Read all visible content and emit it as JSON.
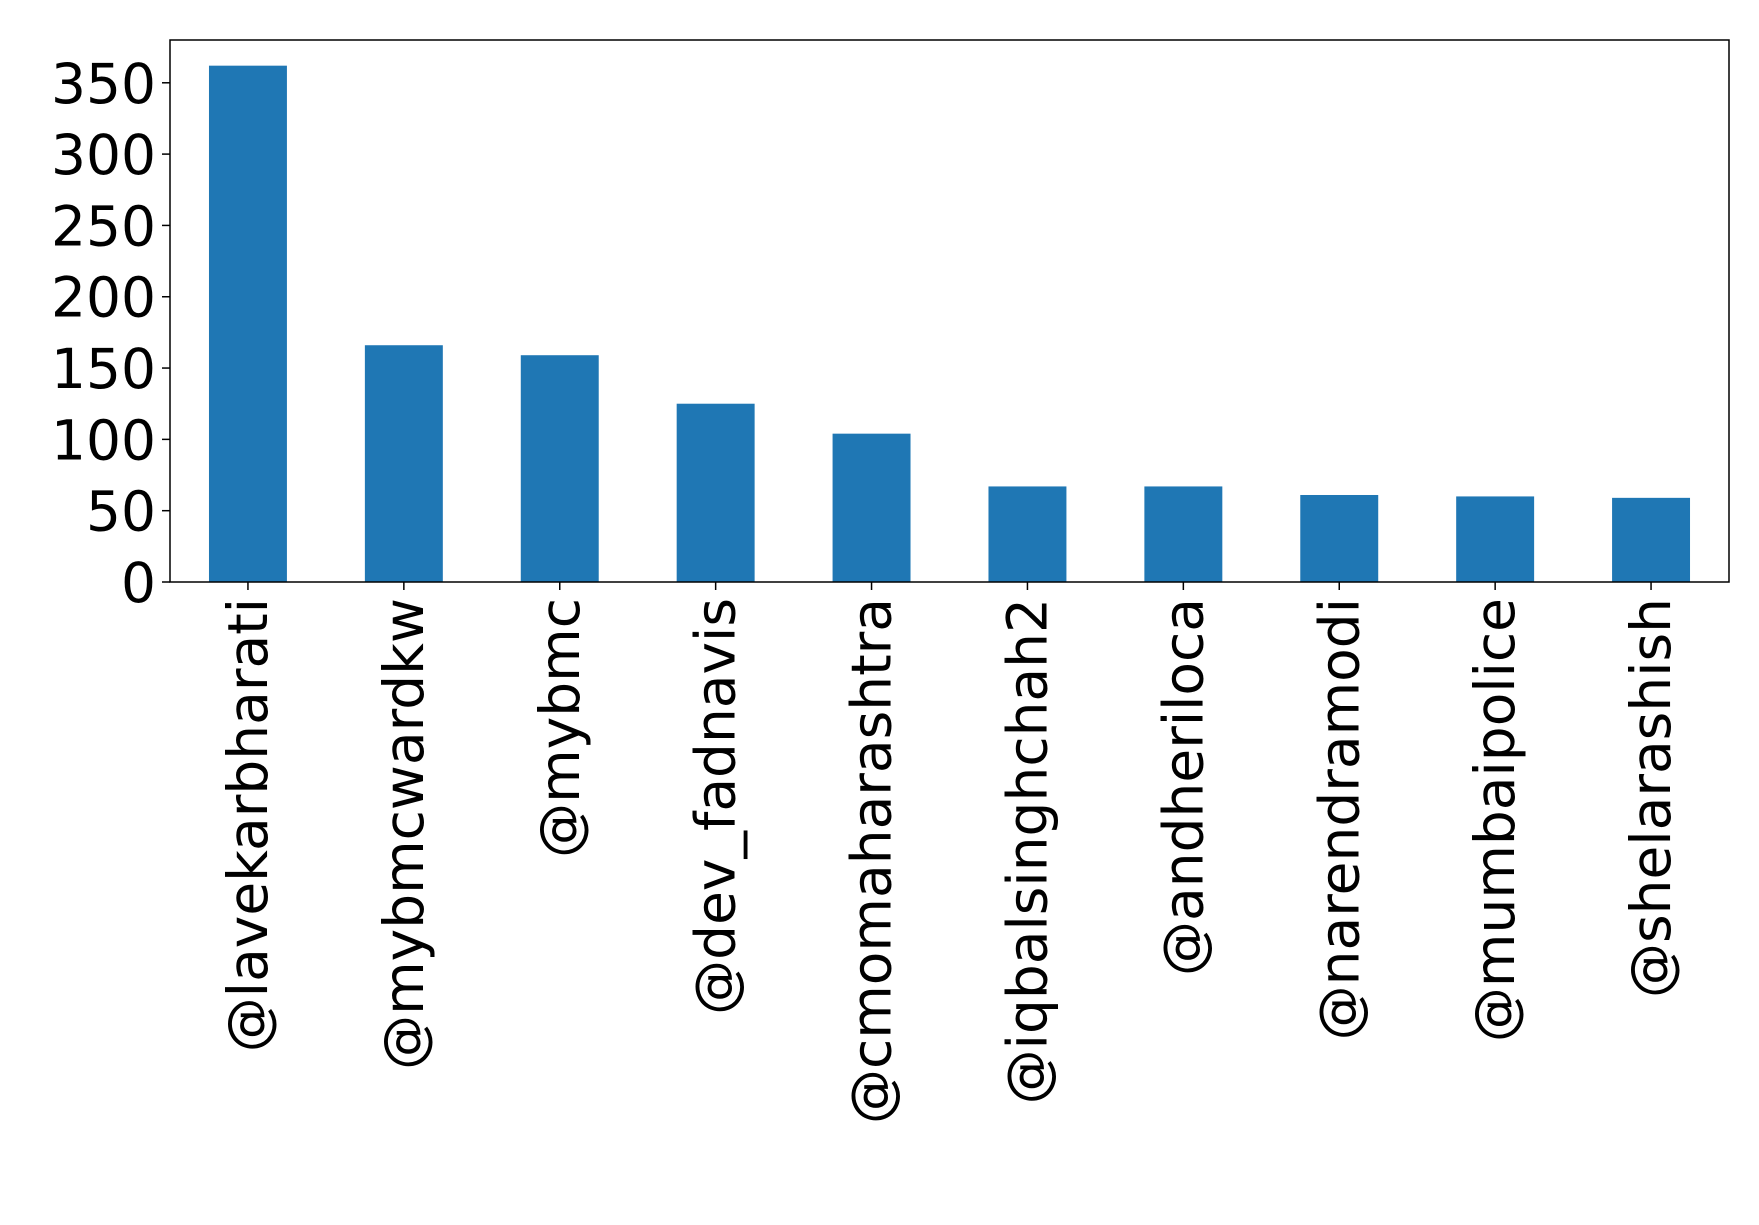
{
  "chart_data": {
    "type": "bar",
    "title": "",
    "xlabel": "",
    "ylabel": "",
    "categories": [
      "@lavekarbharati",
      "@mybmcwardkw",
      "@mybmc",
      "@dev_fadnavis",
      "@cmomaharashtra",
      "@iqbalsinghchah2",
      "@andheriloca",
      "@narendramodi",
      "@mumbaipolice",
      "@shelarashish"
    ],
    "values": [
      362,
      166,
      159,
      125,
      104,
      67,
      67,
      61,
      60,
      59
    ],
    "ylim": [
      0,
      380
    ],
    "yticks": [
      0,
      50,
      100,
      150,
      200,
      250,
      300,
      350
    ],
    "ytick_labels": [
      "0",
      "50",
      "100",
      "150",
      "200",
      "250",
      "300",
      "350"
    ],
    "bar_color": "#1f77b4",
    "grid": false,
    "legend": "none"
  }
}
